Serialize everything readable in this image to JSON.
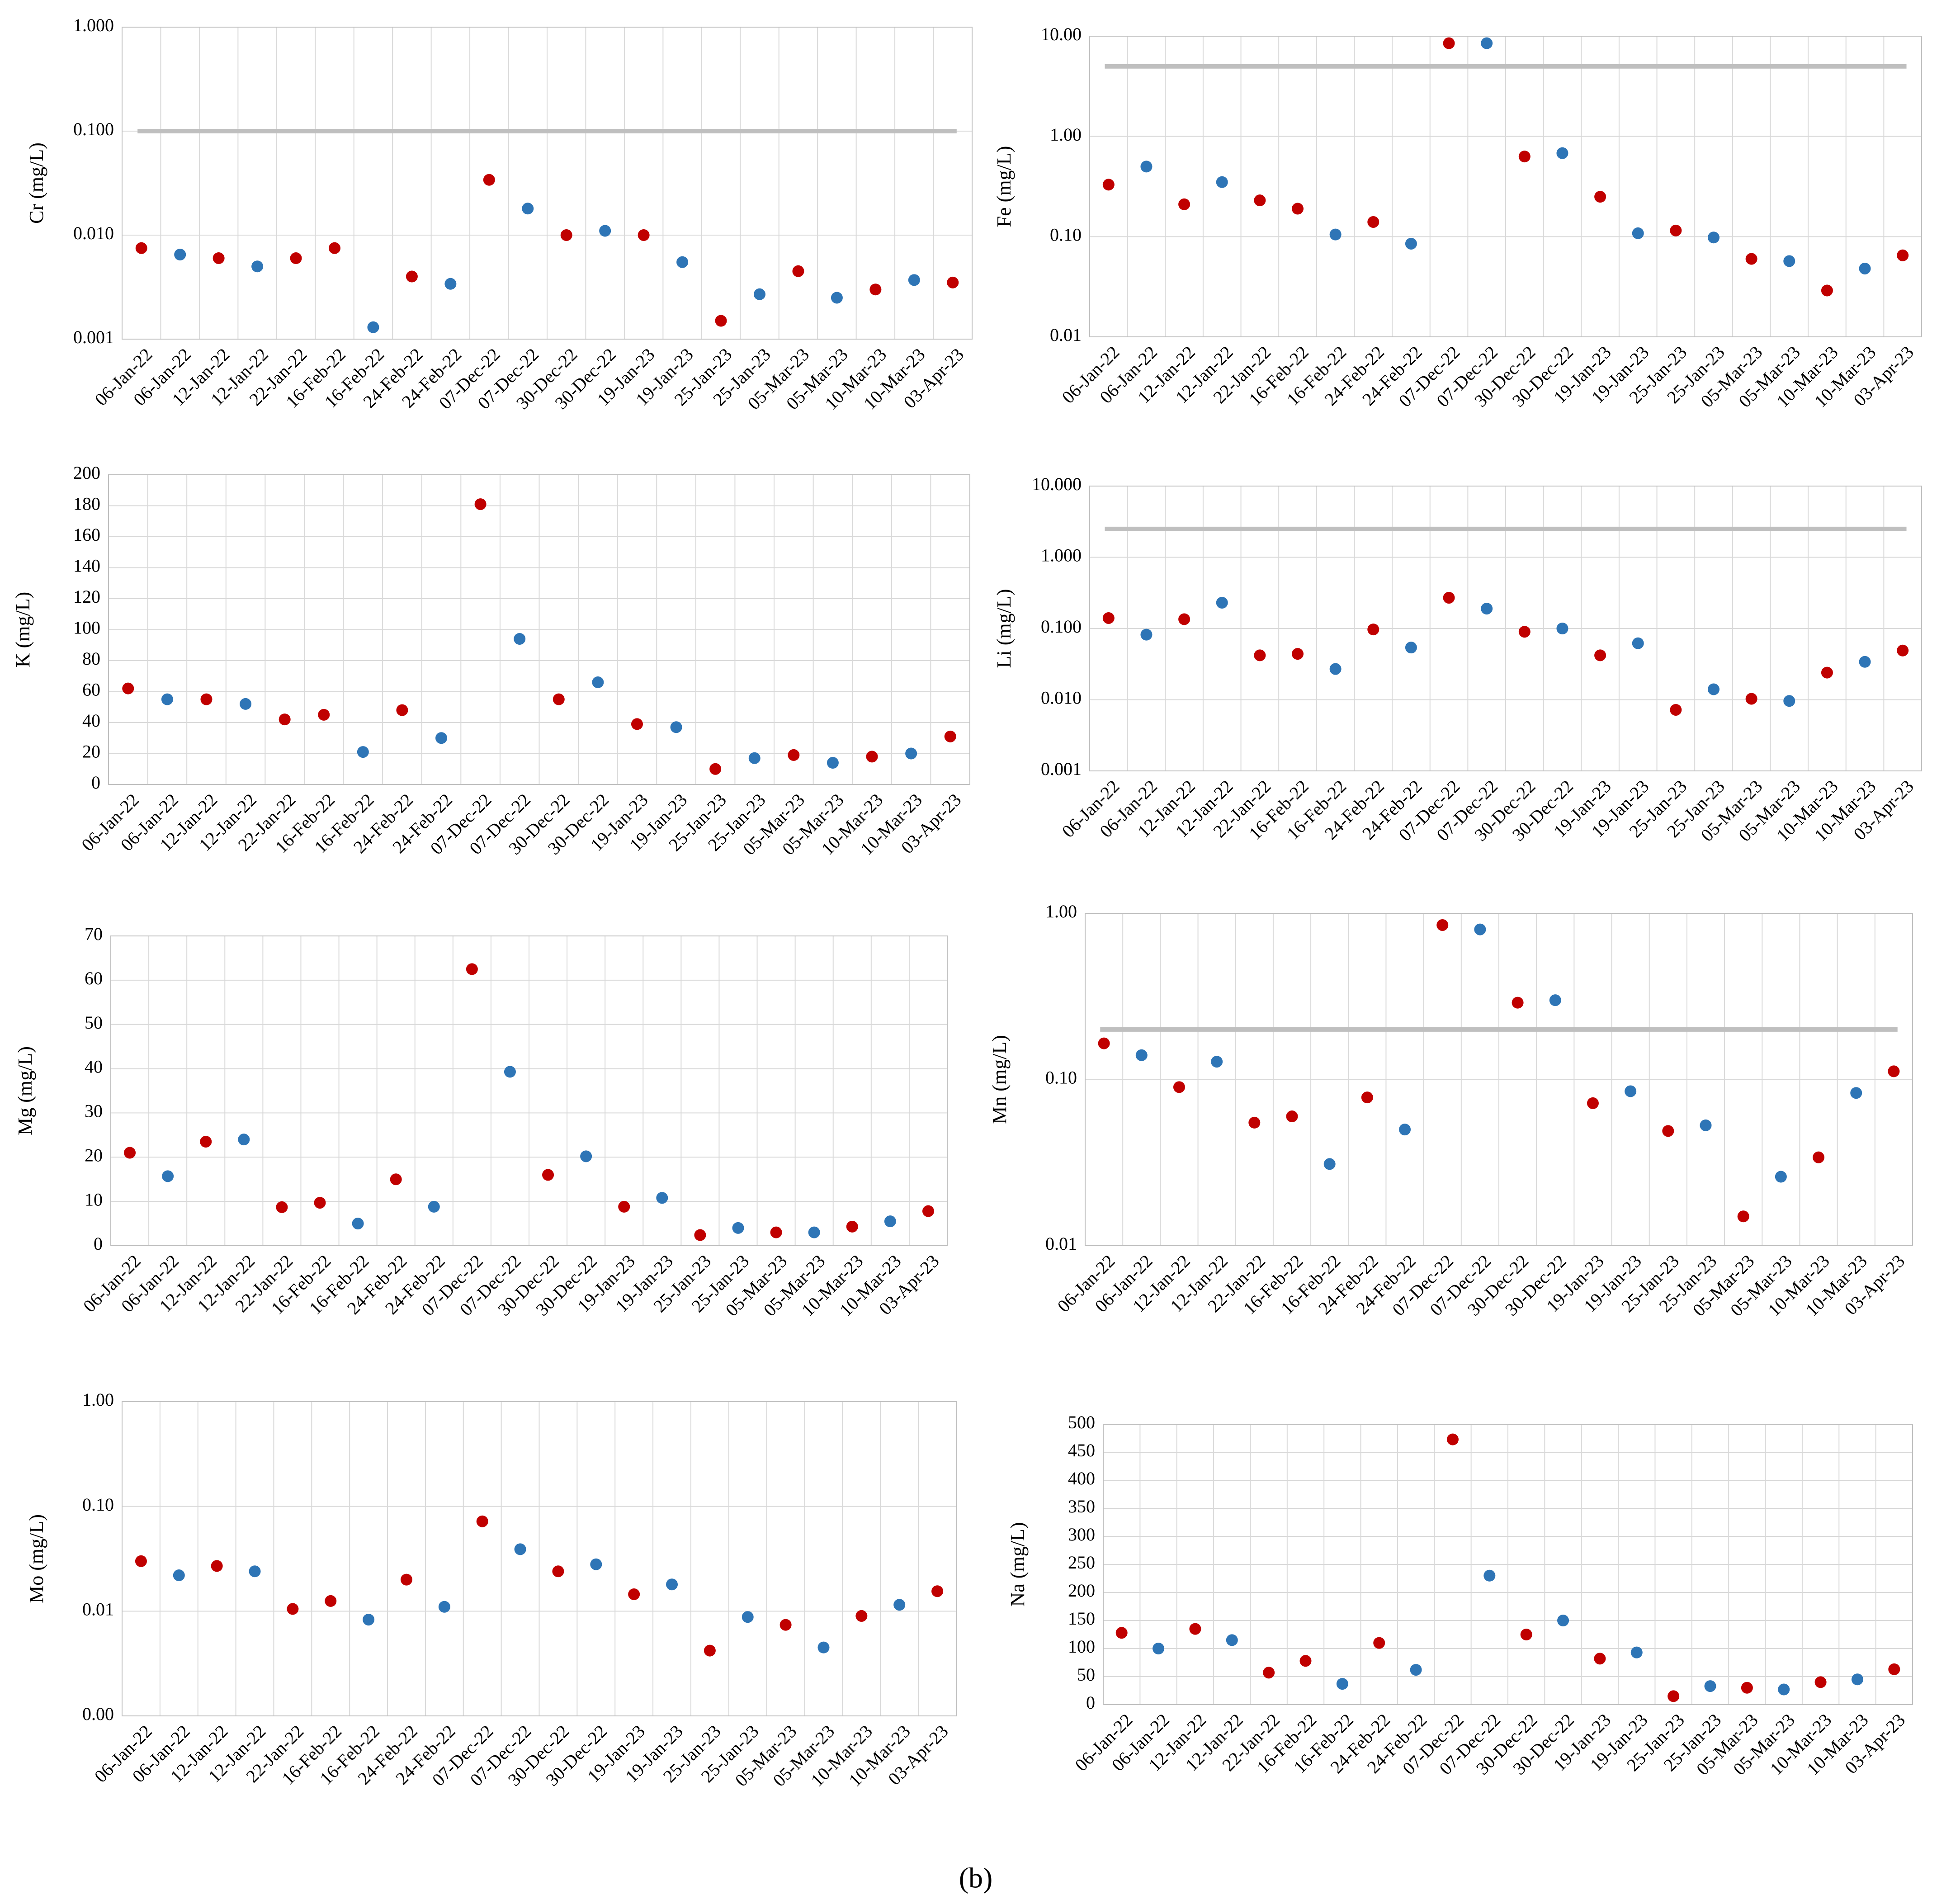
{
  "caption": "(b)",
  "chart_data": [
    {
      "type": "scatter",
      "ylabel": "Cr (mg/L)",
      "log_y": true,
      "grid": true,
      "categories": [
        "06-Jan-22",
        "06-Jan-22",
        "12-Jan-22",
        "12-Jan-22",
        "22-Jan-22",
        "16-Feb-22",
        "16-Feb-22",
        "24-Feb-22",
        "24-Feb-22",
        "07-Dec-22",
        "07-Dec-22",
        "30-Dec-22",
        "30-Dec-22",
        "19-Jan-23",
        "19-Jan-23",
        "25-Jan-23",
        "25-Jan-23",
        "05-Mar-23",
        "05-Mar-23",
        "10-Mar-23",
        "10-Mar-23",
        "03-Apr-23"
      ],
      "values": [
        0.0075,
        0.0065,
        0.006,
        0.005,
        0.006,
        0.0075,
        0.0013,
        0.004,
        0.0034,
        0.034,
        0.018,
        0.01,
        0.011,
        0.01,
        0.0055,
        0.0015,
        0.0027,
        0.0045,
        0.0025,
        0.003,
        0.0037,
        0.0035
      ],
      "point_colors": [
        "#c00000",
        "#2e75b6",
        "#c00000",
        "#2e75b6",
        "#c00000",
        "#c00000",
        "#2e75b6",
        "#c00000",
        "#2e75b6",
        "#c00000",
        "#2e75b6",
        "#c00000",
        "#2e75b6",
        "#c00000",
        "#2e75b6",
        "#c00000",
        "#2e75b6",
        "#c00000",
        "#2e75b6",
        "#c00000",
        "#2e75b6",
        "#c00000"
      ],
      "ylim": [
        0.001,
        1
      ],
      "yticks": [
        {
          "value": 0.001,
          "label": "0.001"
        },
        {
          "value": 0.01,
          "label": "0.010"
        },
        {
          "value": 0.1,
          "label": "0.100"
        },
        {
          "value": 1,
          "label": "1.000"
        }
      ],
      "threshold": 0.1,
      "threshold_color": "#bfbfbf"
    },
    {
      "type": "scatter",
      "ylabel": "Fe (mg/L)",
      "log_y": true,
      "grid": true,
      "categories": [
        "06-Jan-22",
        "06-Jan-22",
        "12-Jan-22",
        "12-Jan-22",
        "22-Jan-22",
        "16-Feb-22",
        "16-Feb-22",
        "24-Feb-22",
        "24-Feb-22",
        "07-Dec-22",
        "07-Dec-22",
        "30-Dec-22",
        "30-Dec-22",
        "19-Jan-23",
        "19-Jan-23",
        "25-Jan-23",
        "25-Jan-23",
        "05-Mar-23",
        "05-Mar-23",
        "10-Mar-23",
        "10-Mar-23",
        "03-Apr-23"
      ],
      "values": [
        0.33,
        0.5,
        0.21,
        0.35,
        0.23,
        0.19,
        0.105,
        0.14,
        0.085,
        8.5,
        8.5,
        0.63,
        0.68,
        0.25,
        0.108,
        0.115,
        0.098,
        0.06,
        0.057,
        0.029,
        0.048,
        0.065
      ],
      "point_colors": [
        "#c00000",
        "#2e75b6",
        "#c00000",
        "#2e75b6",
        "#c00000",
        "#c00000",
        "#2e75b6",
        "#c00000",
        "#2e75b6",
        "#c00000",
        "#2e75b6",
        "#c00000",
        "#2e75b6",
        "#c00000",
        "#2e75b6",
        "#c00000",
        "#2e75b6",
        "#c00000",
        "#2e75b6",
        "#c00000",
        "#2e75b6",
        "#c00000"
      ],
      "ylim": [
        0.01,
        10
      ],
      "yticks": [
        {
          "value": 0.01,
          "label": "0.01"
        },
        {
          "value": 0.1,
          "label": "0.10"
        },
        {
          "value": 1,
          "label": "1.00"
        },
        {
          "value": 10,
          "label": "10.00"
        }
      ],
      "threshold": 5,
      "threshold_color": "#bfbfbf"
    },
    {
      "type": "scatter",
      "ylabel": "K (mg/L)",
      "log_y": false,
      "grid": true,
      "categories": [
        "06-Jan-22",
        "06-Jan-22",
        "12-Jan-22",
        "12-Jan-22",
        "22-Jan-22",
        "16-Feb-22",
        "16-Feb-22",
        "24-Feb-22",
        "24-Feb-22",
        "07-Dec-22",
        "07-Dec-22",
        "30-Dec-22",
        "30-Dec-22",
        "19-Jan-23",
        "19-Jan-23",
        "25-Jan-23",
        "25-Jan-23",
        "05-Mar-23",
        "05-Mar-23",
        "10-Mar-23",
        "10-Mar-23",
        "03-Apr-23"
      ],
      "values": [
        62,
        55,
        55,
        52,
        42,
        45,
        21,
        48,
        30,
        181,
        94,
        55,
        66,
        39,
        37,
        10,
        17,
        19,
        14,
        18,
        20,
        31
      ],
      "point_colors": [
        "#c00000",
        "#2e75b6",
        "#c00000",
        "#2e75b6",
        "#c00000",
        "#c00000",
        "#2e75b6",
        "#c00000",
        "#2e75b6",
        "#c00000",
        "#2e75b6",
        "#c00000",
        "#2e75b6",
        "#c00000",
        "#2e75b6",
        "#c00000",
        "#2e75b6",
        "#c00000",
        "#2e75b6",
        "#c00000",
        "#2e75b6",
        "#c00000"
      ],
      "ylim": [
        0,
        200
      ],
      "yticks": [
        0,
        20,
        40,
        60,
        80,
        100,
        120,
        140,
        160,
        180,
        200
      ]
    },
    {
      "type": "scatter",
      "ylabel": "Li (mg/L)",
      "log_y": true,
      "grid": true,
      "categories": [
        "06-Jan-22",
        "06-Jan-22",
        "12-Jan-22",
        "12-Jan-22",
        "22-Jan-22",
        "16-Feb-22",
        "16-Feb-22",
        "24-Feb-22",
        "24-Feb-22",
        "07-Dec-22",
        "07-Dec-22",
        "30-Dec-22",
        "30-Dec-22",
        "19-Jan-23",
        "19-Jan-23",
        "25-Jan-23",
        "25-Jan-23",
        "05-Mar-23",
        "05-Mar-23",
        "10-Mar-23",
        "10-Mar-23",
        "03-Apr-23"
      ],
      "values": [
        0.14,
        0.082,
        0.135,
        0.23,
        0.042,
        0.044,
        0.027,
        0.097,
        0.054,
        0.27,
        0.19,
        0.09,
        0.1,
        0.042,
        0.062,
        0.0072,
        0.014,
        0.0103,
        0.0096,
        0.024,
        0.034,
        0.049
      ],
      "point_colors": [
        "#c00000",
        "#2e75b6",
        "#c00000",
        "#2e75b6",
        "#c00000",
        "#c00000",
        "#2e75b6",
        "#c00000",
        "#2e75b6",
        "#c00000",
        "#2e75b6",
        "#c00000",
        "#2e75b6",
        "#c00000",
        "#2e75b6",
        "#c00000",
        "#2e75b6",
        "#c00000",
        "#2e75b6",
        "#c00000",
        "#2e75b6",
        "#c00000"
      ],
      "ylim": [
        0.001,
        10
      ],
      "yticks": [
        {
          "value": 0.001,
          "label": "0.001"
        },
        {
          "value": 0.01,
          "label": "0.010"
        },
        {
          "value": 0.1,
          "label": "0.100"
        },
        {
          "value": 1,
          "label": "1.000"
        },
        {
          "value": 10,
          "label": "10.000"
        }
      ],
      "threshold": 2.5,
      "threshold_color": "#bfbfbf"
    },
    {
      "type": "scatter",
      "ylabel": "Mg (mg/L)",
      "log_y": false,
      "grid": true,
      "categories": [
        "06-Jan-22",
        "06-Jan-22",
        "12-Jan-22",
        "12-Jan-22",
        "22-Jan-22",
        "16-Feb-22",
        "16-Feb-22",
        "24-Feb-22",
        "24-Feb-22",
        "07-Dec-22",
        "07-Dec-22",
        "30-Dec-22",
        "30-Dec-22",
        "19-Jan-23",
        "19-Jan-23",
        "25-Jan-23",
        "25-Jan-23",
        "05-Mar-23",
        "05-Mar-23",
        "10-Mar-23",
        "10-Mar-23",
        "03-Apr-23"
      ],
      "values": [
        21,
        15.7,
        23.5,
        24,
        8.7,
        9.7,
        5,
        15,
        8.8,
        62.5,
        39.3,
        16,
        20.2,
        8.8,
        10.8,
        2.4,
        4,
        3,
        3,
        4.3,
        5.5,
        7.8
      ],
      "point_colors": [
        "#c00000",
        "#2e75b6",
        "#c00000",
        "#2e75b6",
        "#c00000",
        "#c00000",
        "#2e75b6",
        "#c00000",
        "#2e75b6",
        "#c00000",
        "#2e75b6",
        "#c00000",
        "#2e75b6",
        "#c00000",
        "#2e75b6",
        "#c00000",
        "#2e75b6",
        "#c00000",
        "#2e75b6",
        "#c00000",
        "#2e75b6",
        "#c00000"
      ],
      "ylim": [
        0,
        70
      ],
      "yticks": [
        0,
        10,
        20,
        30,
        40,
        50,
        60,
        70
      ]
    },
    {
      "type": "scatter",
      "ylabel": "Mn (mg/L)",
      "log_y": true,
      "grid": true,
      "categories": [
        "06-Jan-22",
        "06-Jan-22",
        "12-Jan-22",
        "12-Jan-22",
        "22-Jan-22",
        "16-Feb-22",
        "16-Feb-22",
        "24-Feb-22",
        "24-Feb-22",
        "07-Dec-22",
        "07-Dec-22",
        "30-Dec-22",
        "30-Dec-22",
        "19-Jan-23",
        "19-Jan-23",
        "25-Jan-23",
        "25-Jan-23",
        "05-Mar-23",
        "05-Mar-23",
        "10-Mar-23",
        "10-Mar-23",
        "03-Apr-23"
      ],
      "values": [
        0.165,
        0.14,
        0.09,
        0.128,
        0.055,
        0.06,
        0.031,
        0.078,
        0.05,
        0.85,
        0.8,
        0.29,
        0.3,
        0.072,
        0.085,
        0.049,
        0.053,
        0.015,
        0.026,
        0.034,
        0.083,
        0.112
      ],
      "point_colors": [
        "#c00000",
        "#2e75b6",
        "#c00000",
        "#2e75b6",
        "#c00000",
        "#c00000",
        "#2e75b6",
        "#c00000",
        "#2e75b6",
        "#c00000",
        "#2e75b6",
        "#c00000",
        "#2e75b6",
        "#c00000",
        "#2e75b6",
        "#c00000",
        "#2e75b6",
        "#c00000",
        "#2e75b6",
        "#c00000",
        "#2e75b6",
        "#c00000"
      ],
      "ylim": [
        0.01,
        1
      ],
      "yticks": [
        {
          "value": 0.01,
          "label": "0.01"
        },
        {
          "value": 0.1,
          "label": "0.10"
        },
        {
          "value": 1,
          "label": "1.00"
        }
      ],
      "threshold": 0.2,
      "threshold_color": "#bfbfbf"
    },
    {
      "type": "scatter",
      "ylabel": "Mo (mg/L)",
      "log_y": true,
      "grid": true,
      "categories": [
        "06-Jan-22",
        "06-Jan-22",
        "12-Jan-22",
        "12-Jan-22",
        "22-Jan-22",
        "16-Feb-22",
        "16-Feb-22",
        "24-Feb-22",
        "24-Feb-22",
        "07-Dec-22",
        "07-Dec-22",
        "30-Dec-22",
        "30-Dec-22",
        "19-Jan-23",
        "19-Jan-23",
        "25-Jan-23",
        "25-Jan-23",
        "05-Mar-23",
        "05-Mar-23",
        "10-Mar-23",
        "10-Mar-23",
        "03-Apr-23"
      ],
      "values": [
        0.03,
        0.022,
        0.027,
        0.024,
        0.0105,
        0.0125,
        0.0083,
        0.02,
        0.011,
        0.072,
        0.039,
        0.024,
        0.028,
        0.0145,
        0.018,
        0.0042,
        0.0088,
        0.0074,
        0.0045,
        0.009,
        0.0115,
        0.0155
      ],
      "point_colors": [
        "#c00000",
        "#2e75b6",
        "#c00000",
        "#2e75b6",
        "#c00000",
        "#c00000",
        "#2e75b6",
        "#c00000",
        "#2e75b6",
        "#c00000",
        "#2e75b6",
        "#c00000",
        "#2e75b6",
        "#c00000",
        "#2e75b6",
        "#c00000",
        "#2e75b6",
        "#c00000",
        "#2e75b6",
        "#c00000",
        "#2e75b6",
        "#c00000"
      ],
      "ylim": [
        0.001,
        1
      ],
      "yticks": [
        {
          "value": 0.001,
          "label": "0.00"
        },
        {
          "value": 0.01,
          "label": "0.01"
        },
        {
          "value": 0.1,
          "label": "0.10"
        },
        {
          "value": 1,
          "label": "1.00"
        }
      ]
    },
    {
      "type": "scatter",
      "ylabel": "Na (mg/L)",
      "log_y": false,
      "grid": true,
      "categories": [
        "06-Jan-22",
        "06-Jan-22",
        "12-Jan-22",
        "12-Jan-22",
        "22-Jan-22",
        "16-Feb-22",
        "16-Feb-22",
        "24-Feb-22",
        "24-Feb-22",
        "07-Dec-22",
        "07-Dec-22",
        "30-Dec-22",
        "30-Dec-22",
        "19-Jan-23",
        "19-Jan-23",
        "25-Jan-23",
        "25-Jan-23",
        "05-Mar-23",
        "05-Mar-23",
        "10-Mar-23",
        "10-Mar-23",
        "03-Apr-23"
      ],
      "values": [
        128,
        100,
        135,
        115,
        57,
        78,
        37,
        110,
        62,
        473,
        230,
        125,
        150,
        82,
        93,
        15,
        33,
        30,
        27,
        40,
        45,
        63
      ],
      "point_colors": [
        "#c00000",
        "#2e75b6",
        "#c00000",
        "#2e75b6",
        "#c00000",
        "#c00000",
        "#2e75b6",
        "#c00000",
        "#2e75b6",
        "#c00000",
        "#2e75b6",
        "#c00000",
        "#2e75b6",
        "#c00000",
        "#2e75b6",
        "#c00000",
        "#2e75b6",
        "#c00000",
        "#2e75b6",
        "#c00000",
        "#2e75b6",
        "#c00000"
      ],
      "ylim": [
        0,
        500
      ],
      "yticks": [
        0,
        50,
        100,
        150,
        200,
        250,
        300,
        350,
        400,
        450,
        500
      ]
    }
  ]
}
